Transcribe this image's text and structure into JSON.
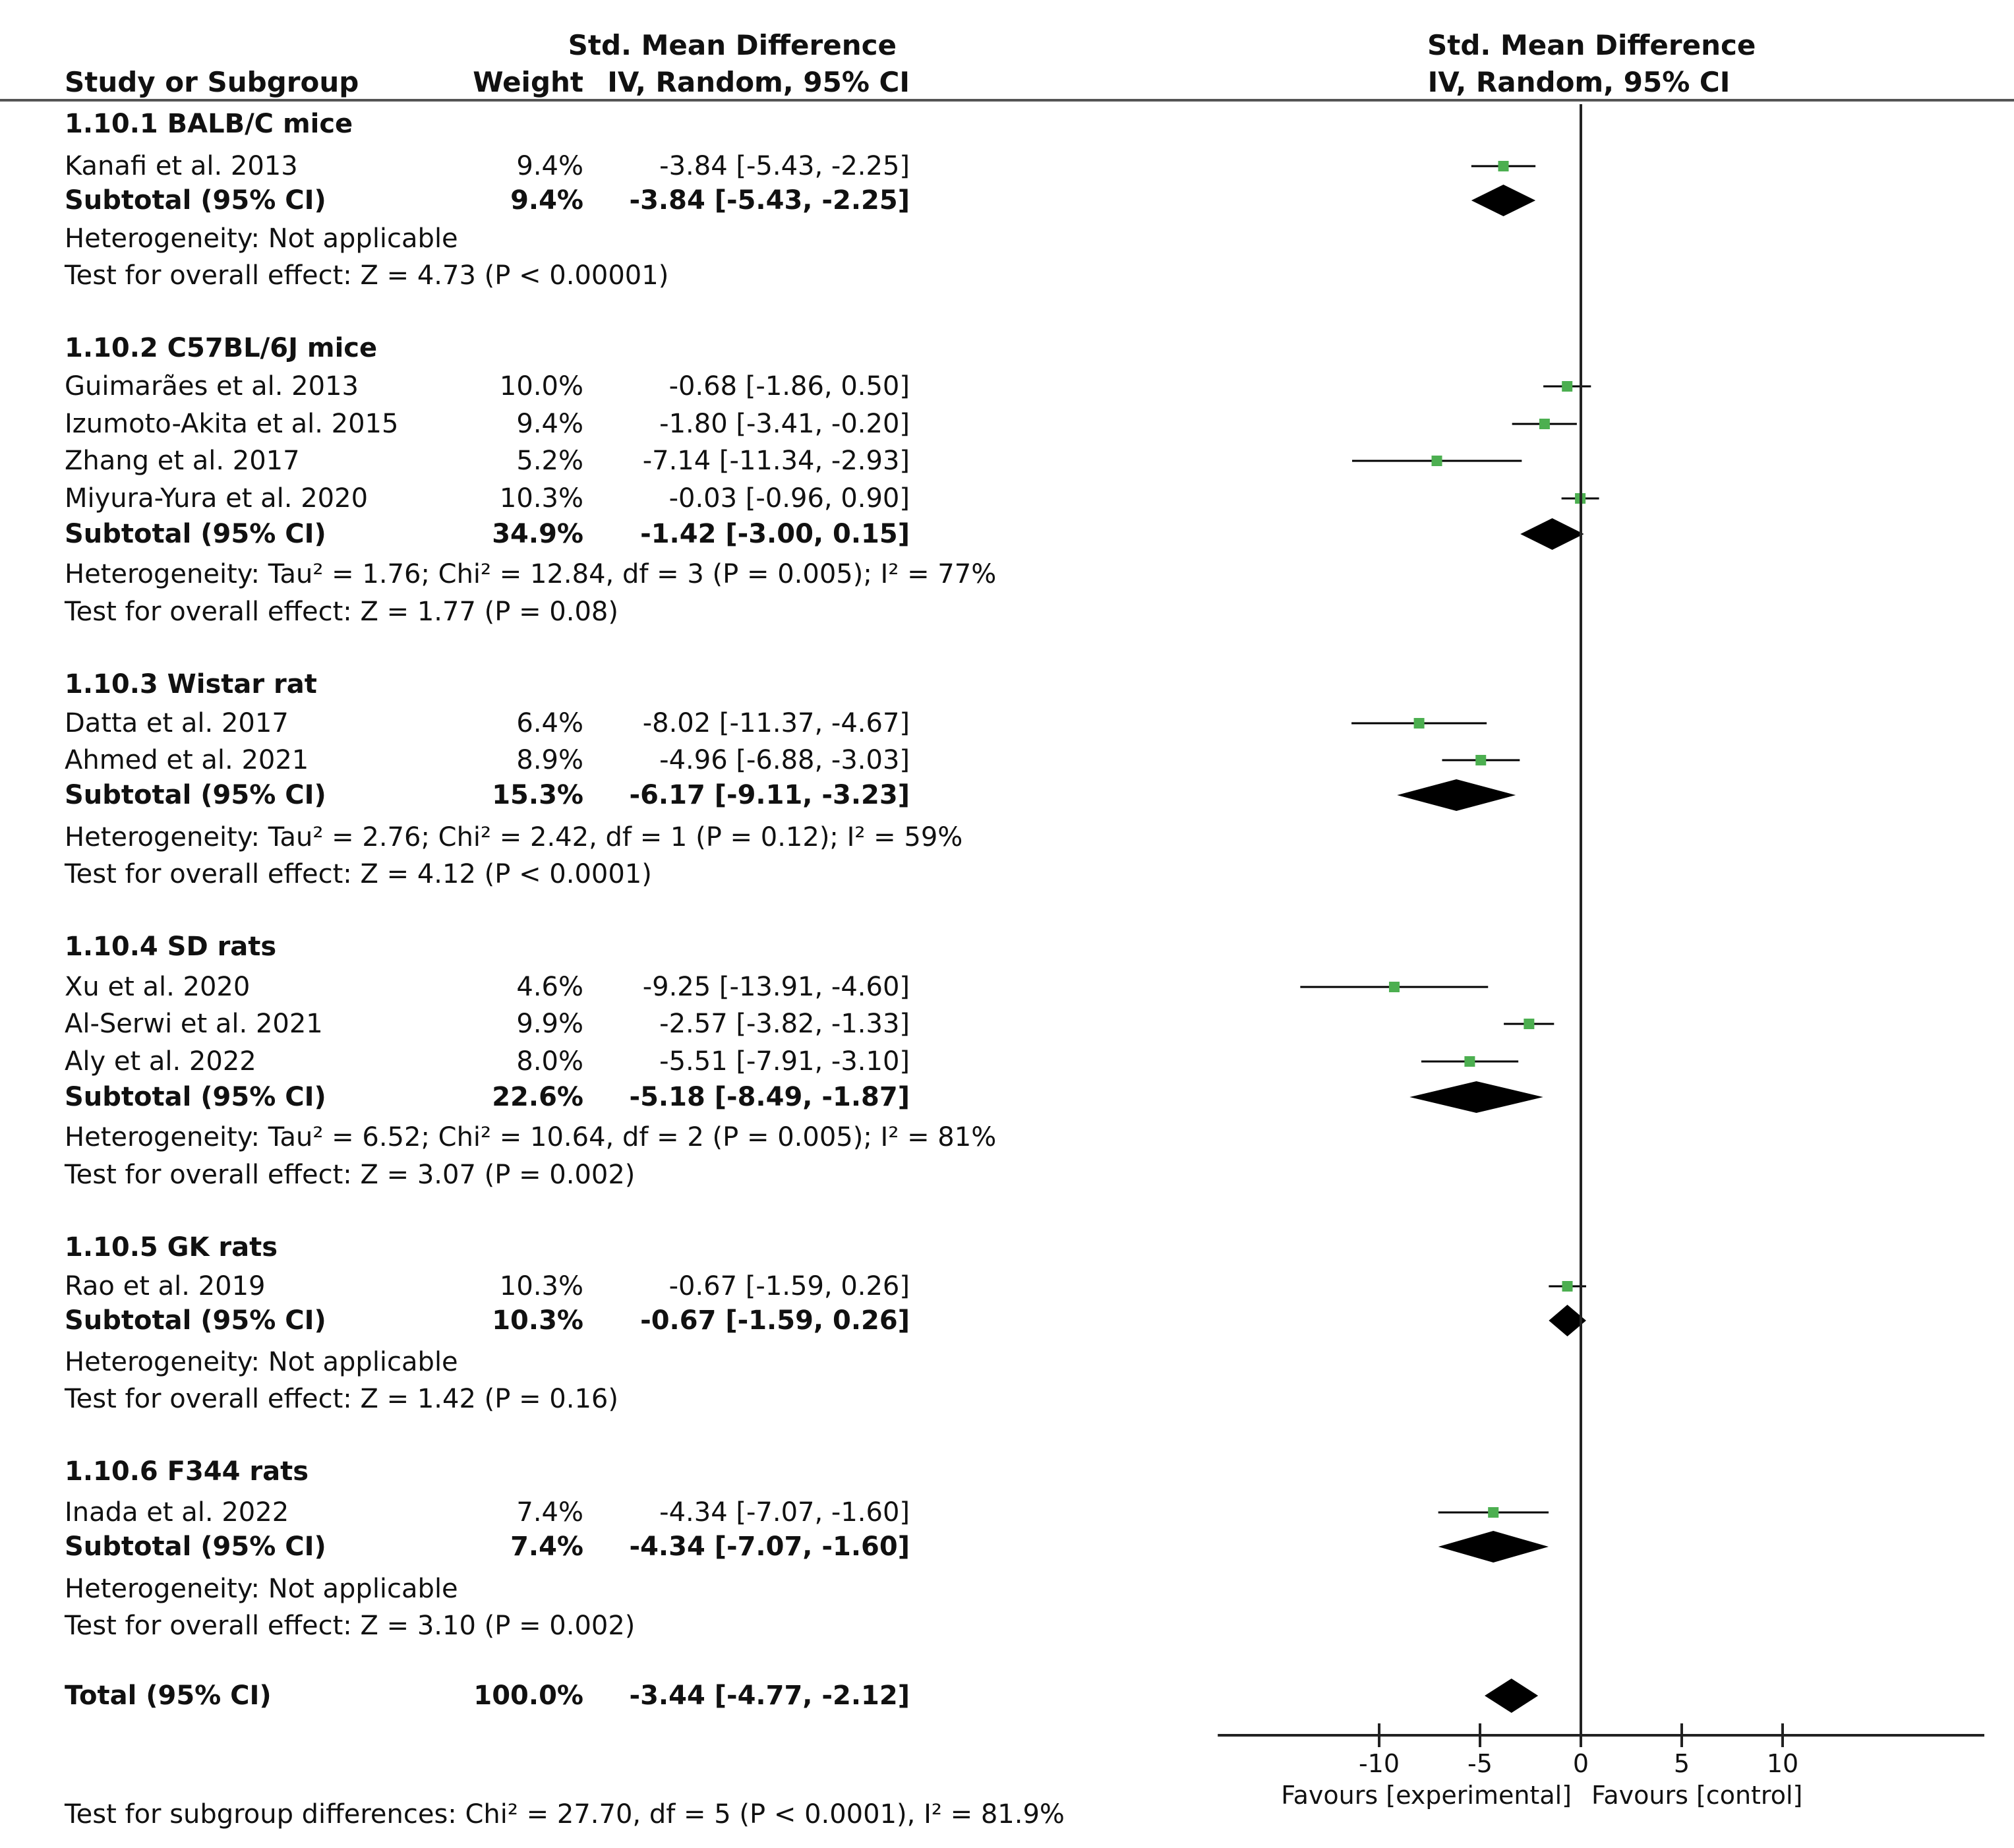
{
  "headers": {
    "study": "Study or Subgroup",
    "weight": "Weight",
    "smd_title": "Std. Mean Difference",
    "smd_method": "IV, Random, 95% CI",
    "plot_title": "Std. Mean Difference",
    "plot_method": "IV, Random, 95% CI"
  },
  "groups": [
    {
      "title": "1.10.1 BALB/C mice",
      "studies": [
        {
          "name": "Kanafi et al. 2013",
          "weight": "9.4%",
          "ci": "-3.84 [-5.43, -2.25]",
          "est": -3.84,
          "lo": -5.43,
          "hi": -2.25
        }
      ],
      "subtotal": {
        "label": "Subtotal (95% CI)",
        "weight": "9.4%",
        "ci": "-3.84 [-5.43, -2.25]",
        "est": -3.84,
        "lo": -5.43,
        "hi": -2.25
      },
      "heterogeneity": "Heterogeneity: Not applicable",
      "overall": "Test for overall effect: Z = 4.73 (P < 0.00001)"
    },
    {
      "title": "1.10.2 C57BL/6J mice",
      "studies": [
        {
          "name": "Guimarães et al. 2013",
          "weight": "10.0%",
          "ci": "-0.68 [-1.86, 0.50]",
          "est": -0.68,
          "lo": -1.86,
          "hi": 0.5
        },
        {
          "name": "Izumoto-Akita et al. 2015",
          "weight": "9.4%",
          "ci": "-1.80 [-3.41, -0.20]",
          "est": -1.8,
          "lo": -3.41,
          "hi": -0.2
        },
        {
          "name": "Zhang et al. 2017",
          "weight": "5.2%",
          "ci": "-7.14 [-11.34, -2.93]",
          "est": -7.14,
          "lo": -11.34,
          "hi": -2.93
        },
        {
          "name": "Miyura-Yura et al. 2020",
          "weight": "10.3%",
          "ci": "-0.03 [-0.96, 0.90]",
          "est": -0.03,
          "lo": -0.96,
          "hi": 0.9
        }
      ],
      "subtotal": {
        "label": "Subtotal (95% CI)",
        "weight": "34.9%",
        "ci": "-1.42 [-3.00, 0.15]",
        "est": -1.42,
        "lo": -3.0,
        "hi": 0.15
      },
      "heterogeneity": "Heterogeneity: Tau² = 1.76; Chi² = 12.84, df = 3 (P = 0.005); I² = 77%",
      "overall": "Test for overall effect: Z = 1.77 (P = 0.08)"
    },
    {
      "title": "1.10.3 Wistar rat",
      "studies": [
        {
          "name": "Datta et al. 2017",
          "weight": "6.4%",
          "ci": "-8.02 [-11.37, -4.67]",
          "est": -8.02,
          "lo": -11.37,
          "hi": -4.67
        },
        {
          "name": "Ahmed et al. 2021",
          "weight": "8.9%",
          "ci": "-4.96 [-6.88, -3.03]",
          "est": -4.96,
          "lo": -6.88,
          "hi": -3.03
        }
      ],
      "subtotal": {
        "label": "Subtotal (95% CI)",
        "weight": "15.3%",
        "ci": "-6.17 [-9.11, -3.23]",
        "est": -6.17,
        "lo": -9.11,
        "hi": -3.23
      },
      "heterogeneity": "Heterogeneity: Tau² = 2.76; Chi² = 2.42, df = 1 (P = 0.12); I² = 59%",
      "overall": "Test for overall effect: Z = 4.12 (P < 0.0001)"
    },
    {
      "title": "1.10.4 SD rats",
      "studies": [
        {
          "name": "Xu et al. 2020",
          "weight": "4.6%",
          "ci": "-9.25 [-13.91, -4.60]",
          "est": -9.25,
          "lo": -13.91,
          "hi": -4.6
        },
        {
          "name": "Al-Serwi et al. 2021",
          "weight": "9.9%",
          "ci": "-2.57 [-3.82, -1.33]",
          "est": -2.57,
          "lo": -3.82,
          "hi": -1.33
        },
        {
          "name": "Aly et al. 2022",
          "weight": "8.0%",
          "ci": "-5.51 [-7.91, -3.10]",
          "est": -5.51,
          "lo": -7.91,
          "hi": -3.1
        }
      ],
      "subtotal": {
        "label": "Subtotal (95% CI)",
        "weight": "22.6%",
        "ci": "-5.18 [-8.49, -1.87]",
        "est": -5.18,
        "lo": -8.49,
        "hi": -1.87
      },
      "heterogeneity": "Heterogeneity: Tau² = 6.52; Chi² = 10.64, df = 2 (P = 0.005); I² = 81%",
      "overall": "Test for overall effect: Z = 3.07 (P = 0.002)"
    },
    {
      "title": "1.10.5 GK rats",
      "studies": [
        {
          "name": "Rao et al. 2019",
          "weight": "10.3%",
          "ci": "-0.67 [-1.59, 0.26]",
          "est": -0.67,
          "lo": -1.59,
          "hi": 0.26
        }
      ],
      "subtotal": {
        "label": "Subtotal (95% CI)",
        "weight": "10.3%",
        "ci": "-0.67 [-1.59, 0.26]",
        "est": -0.67,
        "lo": -1.59,
        "hi": 0.26
      },
      "heterogeneity": "Heterogeneity: Not applicable",
      "overall": "Test for overall effect: Z = 1.42 (P = 0.16)"
    },
    {
      "title": "1.10.6 F344 rats",
      "studies": [
        {
          "name": "Inada et al. 2022",
          "weight": "7.4%",
          "ci": "-4.34 [-7.07, -1.60]",
          "est": -4.34,
          "lo": -7.07,
          "hi": -1.6
        }
      ],
      "subtotal": {
        "label": "Subtotal (95% CI)",
        "weight": "7.4%",
        "ci": "-4.34 [-7.07, -1.60]",
        "est": -4.34,
        "lo": -7.07,
        "hi": -1.6
      },
      "heterogeneity": "Heterogeneity: Not applicable",
      "overall": "Test for overall effect: Z = 3.10 (P = 0.002)"
    }
  ],
  "total": {
    "label": "Total (95% CI)",
    "weight": "100.0%",
    "ci": "-3.44 [-4.77, -2.12]",
    "est": -3.44,
    "lo": -4.77,
    "hi": -2.12
  },
  "subgroup_test": "Test for subgroup differences: Chi² = 27.70, df = 5 (P < 0.0001), I² = 81.9%",
  "axis": {
    "ticks": [
      -10,
      -5,
      0,
      5,
      10
    ],
    "tick_labels": [
      "-10",
      "-5",
      "0",
      "5",
      "10"
    ],
    "xlim": [
      -18,
      20
    ],
    "favours_left": "Favours [experimental]",
    "favours_right": "Favours [control]"
  },
  "colors": {
    "point": "#4caf50",
    "line": "#000000",
    "diamond": "#000000"
  },
  "chart_data": {
    "type": "forest",
    "title": "Std. Mean Difference IV, Random, 95% CI",
    "xlabel": "Favours [experimental]  Favours [control]",
    "xlim": [
      -18,
      20
    ],
    "xticks": [
      -10,
      -5,
      0,
      5,
      10
    ],
    "studies": [
      {
        "name": "Kanafi et al. 2013",
        "est": -3.84,
        "lo": -5.43,
        "hi": -2.25
      },
      {
        "name": "Guimarães et al. 2013",
        "est": -0.68,
        "lo": -1.86,
        "hi": 0.5
      },
      {
        "name": "Izumoto-Akita et al. 2015",
        "est": -1.8,
        "lo": -3.41,
        "hi": -0.2
      },
      {
        "name": "Zhang et al. 2017",
        "est": -7.14,
        "lo": -11.34,
        "hi": -2.93
      },
      {
        "name": "Miyura-Yura et al. 2020",
        "est": -0.03,
        "lo": -0.96,
        "hi": 0.9
      },
      {
        "name": "Datta et al. 2017",
        "est": -8.02,
        "lo": -11.37,
        "hi": -4.67
      },
      {
        "name": "Ahmed et al. 2021",
        "est": -4.96,
        "lo": -6.88,
        "hi": -3.03
      },
      {
        "name": "Xu et al. 2020",
        "est": -9.25,
        "lo": -13.91,
        "hi": -4.6
      },
      {
        "name": "Al-Serwi et al. 2021",
        "est": -2.57,
        "lo": -3.82,
        "hi": -1.33
      },
      {
        "name": "Aly et al. 2022",
        "est": -5.51,
        "lo": -7.91,
        "hi": -3.1
      },
      {
        "name": "Rao et al. 2019",
        "est": -0.67,
        "lo": -1.59,
        "hi": 0.26
      },
      {
        "name": "Inada et al. 2022",
        "est": -4.34,
        "lo": -7.07,
        "hi": -1.6
      }
    ],
    "subtotals": [
      {
        "group": "1.10.1 BALB/C mice",
        "est": -3.84,
        "lo": -5.43,
        "hi": -2.25
      },
      {
        "group": "1.10.2 C57BL/6J mice",
        "est": -1.42,
        "lo": -3.0,
        "hi": 0.15
      },
      {
        "group": "1.10.3 Wistar rat",
        "est": -6.17,
        "lo": -9.11,
        "hi": -3.23
      },
      {
        "group": "1.10.4 SD rats",
        "est": -5.18,
        "lo": -8.49,
        "hi": -1.87
      },
      {
        "group": "1.10.5 GK rats",
        "est": -0.67,
        "lo": -1.59,
        "hi": 0.26
      },
      {
        "group": "1.10.6 F344 rats",
        "est": -4.34,
        "lo": -7.07,
        "hi": -1.6
      }
    ],
    "total": {
      "est": -3.44,
      "lo": -4.77,
      "hi": -2.12
    }
  }
}
